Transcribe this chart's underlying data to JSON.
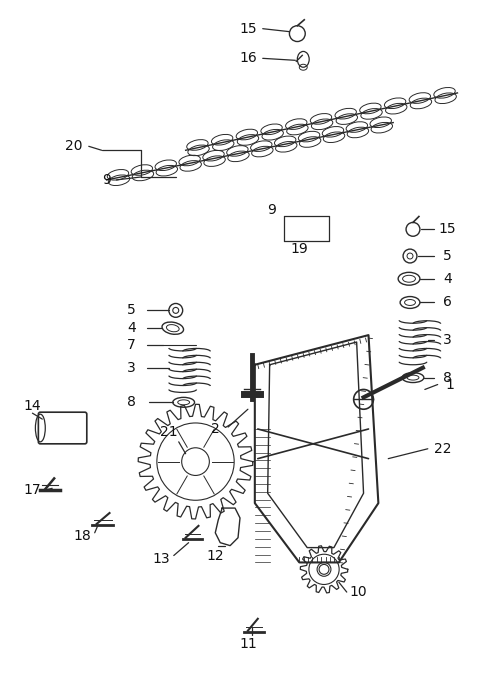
{
  "background_color": "#ffffff",
  "figure_width": 4.8,
  "figure_height": 6.87,
  "dpi": 100,
  "line_color": "#2a2a2a",
  "text_color": "#111111"
}
